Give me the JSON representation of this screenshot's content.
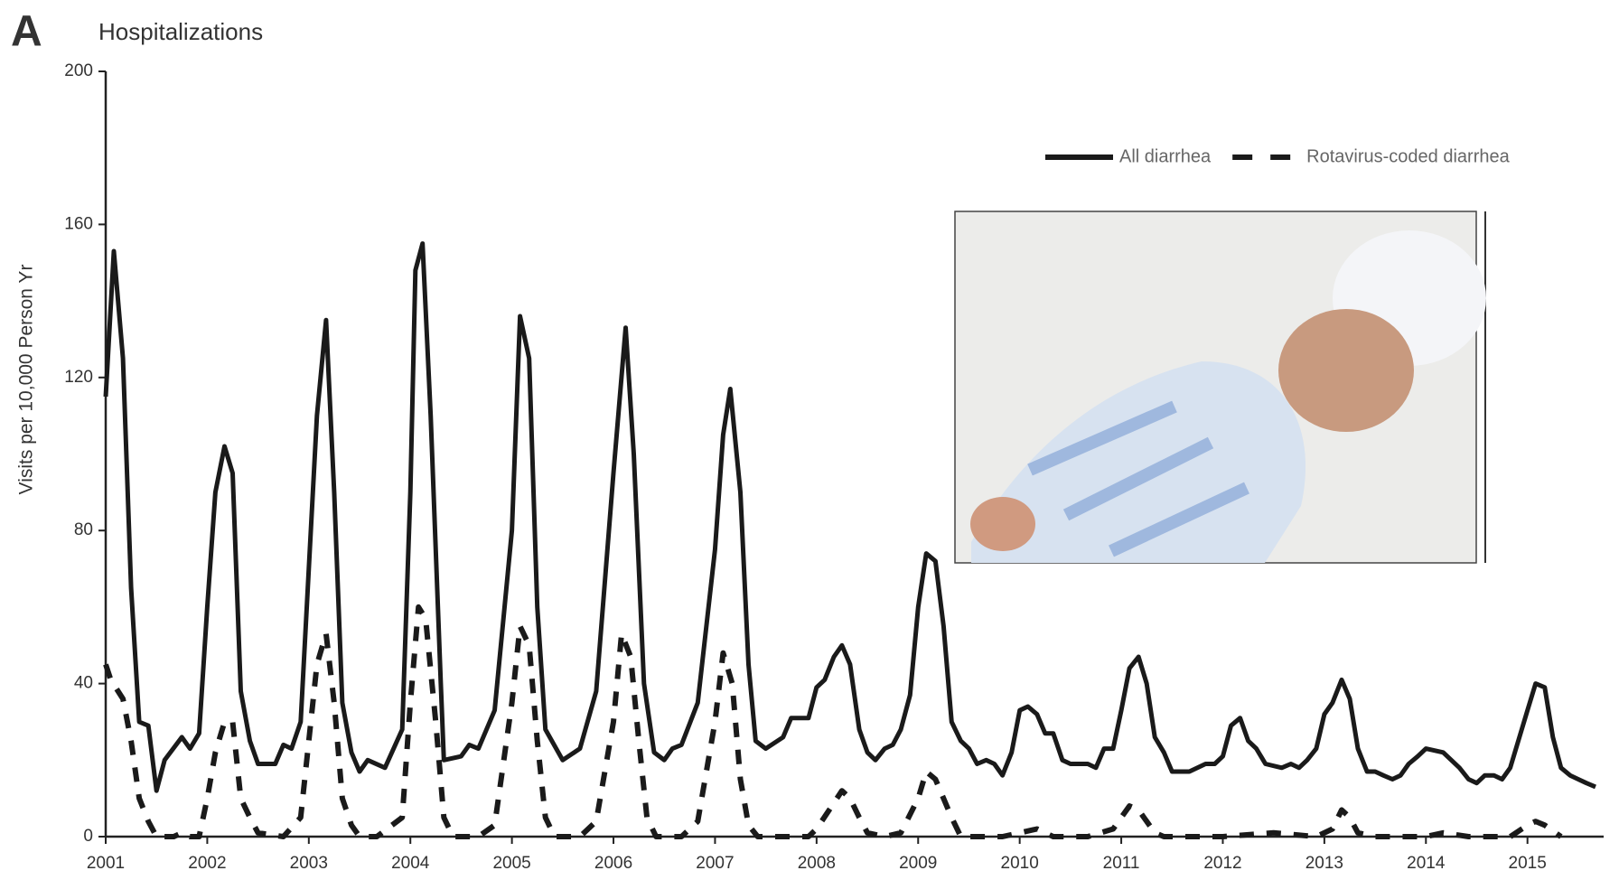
{
  "chart_data": {
    "type": "line",
    "panel_label": "A",
    "title": "Hospitalizations",
    "y_label": "Visits per 10,000 Person Yr",
    "xlim": [
      2001,
      2015.75
    ],
    "ylim": [
      0,
      200
    ],
    "xticks": [
      2001,
      2002,
      2003,
      2004,
      2005,
      2006,
      2007,
      2008,
      2009,
      2010,
      2011,
      2012,
      2013,
      2014,
      2015
    ],
    "yticks": [
      0,
      40,
      80,
      120,
      160,
      200
    ],
    "legend": "top-right",
    "series": [
      {
        "name": "All diarrhea",
        "color": "#1a1a1a",
        "style": "solid",
        "x": [
          2001.0,
          2001.08,
          2001.17,
          2001.25,
          2001.33,
          2001.42,
          2001.5,
          2001.58,
          2001.75,
          2001.83,
          2001.92,
          2002.0,
          2002.08,
          2002.17,
          2002.25,
          2002.33,
          2002.42,
          2002.5,
          2002.67,
          2002.75,
          2002.83,
          2002.92,
          2003.0,
          2003.08,
          2003.17,
          2003.25,
          2003.33,
          2003.42,
          2003.5,
          2003.58,
          2003.75,
          2003.92,
          2004.0,
          2004.05,
          2004.12,
          2004.2,
          2004.3,
          2004.33,
          2004.5,
          2004.58,
          2004.67,
          2004.83,
          2005.0,
          2005.08,
          2005.17,
          2005.25,
          2005.33,
          2005.5,
          2005.67,
          2005.83,
          2006.0,
          2006.12,
          2006.2,
          2006.3,
          2006.4,
          2006.5,
          2006.58,
          2006.67,
          2006.83,
          2007.0,
          2007.08,
          2007.15,
          2007.25,
          2007.33,
          2007.4,
          2007.5,
          2007.67,
          2007.75,
          2007.92,
          2008.0,
          2008.08,
          2008.17,
          2008.25,
          2008.33,
          2008.42,
          2008.5,
          2008.58,
          2008.67,
          2008.75,
          2008.83,
          2008.92,
          2009.0,
          2009.08,
          2009.17,
          2009.25,
          2009.33,
          2009.42,
          2009.5,
          2009.58,
          2009.67,
          2009.75,
          2009.83,
          2009.92,
          2010.0,
          2010.08,
          2010.17,
          2010.25,
          2010.33,
          2010.42,
          2010.5,
          2010.58,
          2010.67,
          2010.75,
          2010.83,
          2010.92,
          2011.0,
          2011.08,
          2011.17,
          2011.25,
          2011.33,
          2011.42,
          2011.5,
          2011.67,
          2011.83,
          2011.92,
          2012.0,
          2012.08,
          2012.17,
          2012.25,
          2012.33,
          2012.42,
          2012.58,
          2012.67,
          2012.75,
          2012.83,
          2012.92,
          2013.0,
          2013.08,
          2013.17,
          2013.25,
          2013.33,
          2013.42,
          2013.5,
          2013.58,
          2013.67,
          2013.75,
          2013.83,
          2013.92,
          2014.0,
          2014.17,
          2014.25,
          2014.33,
          2014.42,
          2014.5,
          2014.58,
          2014.67,
          2014.75,
          2014.83,
          2015.0,
          2015.08,
          2015.17,
          2015.25,
          2015.33,
          2015.42,
          2015.5,
          2015.58,
          2015.67
        ],
        "values": [
          115,
          153,
          125,
          65,
          30,
          29,
          12,
          20,
          26,
          23,
          27,
          60,
          90,
          102,
          95,
          38,
          25,
          19,
          19,
          24,
          23,
          30,
          70,
          110,
          135,
          90,
          35,
          22,
          17,
          20,
          18,
          28,
          90,
          148,
          155,
          110,
          40,
          20,
          21,
          24,
          23,
          33,
          80,
          136,
          125,
          60,
          28,
          20,
          23,
          38,
          95,
          133,
          100,
          40,
          22,
          20,
          23,
          24,
          35,
          75,
          105,
          117,
          90,
          45,
          25,
          23,
          26,
          31,
          31,
          39,
          41,
          47,
          50,
          45,
          28,
          22,
          20,
          23,
          24,
          28,
          37,
          60,
          74,
          72,
          55,
          30,
          25,
          23,
          19,
          20,
          19,
          16,
          22,
          33,
          34,
          32,
          27,
          27,
          20,
          19,
          19,
          19,
          18,
          23,
          23,
          33,
          44,
          47,
          40,
          26,
          22,
          17,
          17,
          19,
          19,
          21,
          29,
          31,
          25,
          23,
          19,
          18,
          19,
          18,
          20,
          23,
          32,
          35,
          41,
          36,
          23,
          17,
          17,
          16,
          15,
          16,
          19,
          21,
          23,
          22,
          20,
          18,
          15,
          14,
          16,
          16,
          15,
          18,
          33,
          40,
          39,
          26,
          18,
          16,
          15,
          14,
          13
        ]
      },
      {
        "name": "Rotavirus-coded diarrhea",
        "color": "#1a1a1a",
        "style": "dashed",
        "x": [
          2001.0,
          2001.05,
          2001.17,
          2001.25,
          2001.33,
          2001.42,
          2001.5,
          2001.67,
          2001.75,
          2001.83,
          2001.92,
          2002.0,
          2002.08,
          2002.17,
          2002.25,
          2002.33,
          2002.42,
          2002.5,
          2002.75,
          2002.92,
          2003.0,
          2003.08,
          2003.17,
          2003.25,
          2003.33,
          2003.42,
          2003.5,
          2003.67,
          2003.92,
          2004.0,
          2004.08,
          2004.15,
          2004.25,
          2004.33,
          2004.42,
          2004.67,
          2004.83,
          2005.0,
          2005.08,
          2005.17,
          2005.25,
          2005.33,
          2005.42,
          2005.67,
          2005.83,
          2006.0,
          2006.08,
          2006.17,
          2006.25,
          2006.33,
          2006.42,
          2006.67,
          2006.83,
          2007.0,
          2007.08,
          2007.17,
          2007.25,
          2007.33,
          2007.42,
          2007.67,
          2007.92,
          2008.0,
          2008.1,
          2008.25,
          2008.33,
          2008.42,
          2008.5,
          2008.67,
          2008.83,
          2009.0,
          2009.08,
          2009.17,
          2009.33,
          2009.42,
          2009.67,
          2009.83,
          2010.0,
          2010.17,
          2010.33,
          2010.67,
          2010.92,
          2011.08,
          2011.17,
          2011.33,
          2011.42,
          2011.75,
          2012.0,
          2012.5,
          2012.92,
          2013.08,
          2013.17,
          2013.25,
          2013.33,
          2013.5,
          2013.75,
          2014.0,
          2014.17,
          2014.42,
          2014.83,
          2015.0,
          2015.08,
          2015.17,
          2015.33
        ],
        "values": [
          45,
          41,
          36,
          25,
          10,
          4,
          0,
          0,
          1,
          0,
          0,
          10,
          22,
          30,
          30,
          10,
          5,
          1,
          0,
          5,
          25,
          45,
          53,
          35,
          10,
          3,
          0,
          0,
          5,
          35,
          60,
          57,
          30,
          5,
          0,
          0,
          3,
          35,
          55,
          50,
          25,
          5,
          0,
          0,
          4,
          30,
          53,
          47,
          25,
          5,
          0,
          0,
          4,
          30,
          48,
          40,
          15,
          3,
          0,
          0,
          0,
          2,
          6,
          12,
          10,
          5,
          1,
          0,
          1,
          10,
          17,
          15,
          5,
          0,
          0,
          0,
          1,
          2,
          0,
          0,
          2,
          8,
          7,
          1,
          0,
          0,
          0,
          1,
          0,
          2,
          7,
          5,
          1,
          0,
          0,
          0,
          1,
          0,
          0,
          3,
          4,
          3,
          0
        ]
      }
    ]
  }
}
